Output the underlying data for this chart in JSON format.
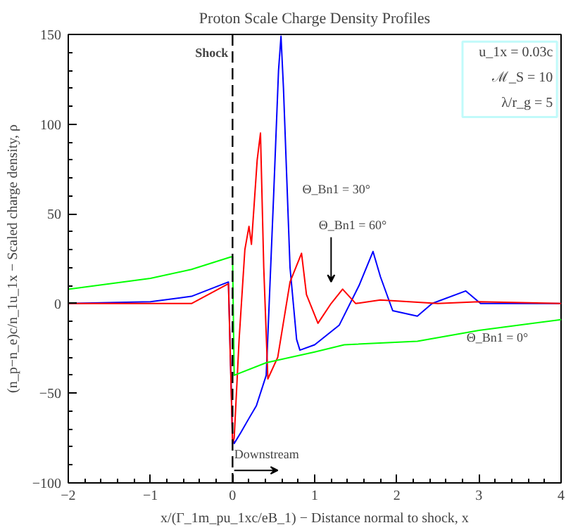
{
  "chart_data": {
    "type": "line",
    "title": "Proton Scale Charge Density Profiles",
    "xlabel": "x/(Γ_1m_pu_1xc/eB_1) − Distance normal to shock, x",
    "ylabel": "(n_p−n_e)c/n_1u_1x − Scaled charge density, ρ",
    "xlim": [
      -2,
      4
    ],
    "xticks": [
      -2,
      -1,
      0,
      1,
      2,
      3,
      4
    ],
    "ylim": [
      -100,
      150
    ],
    "yticks": [
      -100,
      -50,
      0,
      50,
      100,
      150
    ],
    "grid": false,
    "marker": "none",
    "line_style": "solid",
    "ref_lines": [
      {
        "axis": "x",
        "value": 0,
        "label": "Shock",
        "color": "#000000",
        "line_style": "dashed"
      }
    ],
    "annotations": [
      "u_1x = 0.03c",
      "ℳ_S = 10",
      "λ/r_g = 5",
      "Downstream"
    ],
    "series": [
      {
        "name": "Θ_Bn1 = 30°",
        "color": "#0000ff",
        "x": [
          -2,
          -1,
          -0.5,
          -0.05,
          0,
          0.02,
          0.1,
          0.2,
          0.29,
          0.41,
          0.5,
          0.56,
          0.59,
          0.62,
          0.7,
          0.78,
          0.82,
          1.0,
          1.3,
          1.54,
          1.71,
          1.8,
          1.95,
          2.25,
          2.43,
          2.84,
          3.02,
          3.5,
          4
        ],
        "values": [
          0,
          1,
          4,
          12,
          -75,
          -78,
          -72,
          -64,
          -57,
          -40,
          60,
          130,
          149,
          120,
          20,
          -20,
          -26,
          -23,
          -12,
          10,
          29,
          15,
          -4,
          -7,
          0,
          7,
          0,
          0,
          0
        ]
      },
      {
        "name": "Θ_Bn1 = 60°",
        "color": "#ff0000",
        "x": [
          -2,
          -0.5,
          -0.05,
          0,
          0.02,
          0.08,
          0.15,
          0.2,
          0.23,
          0.3,
          0.34,
          0.38,
          0.43,
          0.55,
          0.7,
          0.84,
          0.9,
          1.04,
          1.2,
          1.34,
          1.5,
          1.8,
          2.5,
          3,
          4
        ],
        "values": [
          0,
          0,
          11,
          -78,
          -75,
          -20,
          30,
          43,
          33,
          80,
          95,
          20,
          -42,
          -30,
          12,
          28,
          5,
          -11,
          0,
          8,
          0,
          2,
          0,
          1,
          0
        ]
      },
      {
        "name": "Θ_Bn1 = 0°",
        "color": "#00ff00",
        "x": [
          -2,
          -1,
          -0.5,
          -0.02,
          0,
          0.02,
          0.41,
          1.0,
          1.36,
          2.25,
          3,
          4
        ],
        "values": [
          8,
          14,
          19,
          26,
          26,
          -40,
          -33,
          -27,
          -23,
          -21,
          -15,
          -9
        ]
      }
    ]
  }
}
